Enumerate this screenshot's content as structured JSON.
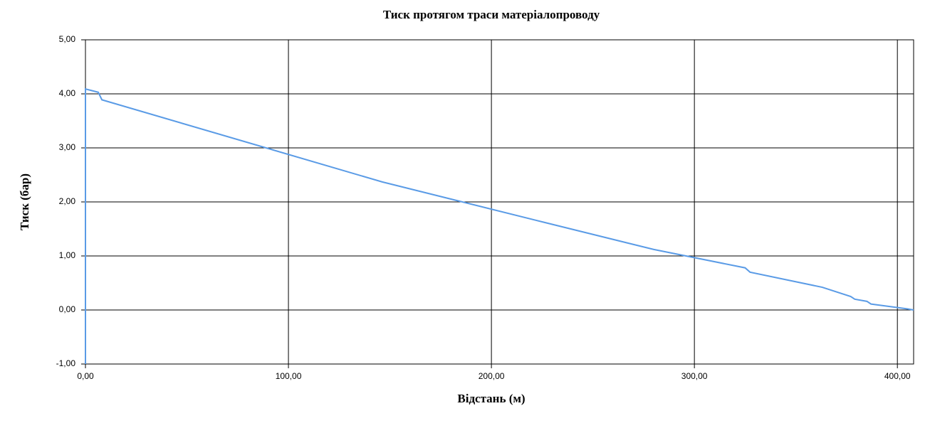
{
  "chart_data": {
    "type": "line",
    "title": "Тиск протягом траси матеріалопроводу",
    "x_label": "Відстань (м)",
    "y_label": "Тиск (бар)",
    "x": [
      0,
      0,
      6.3,
      8.1,
      146.2,
      221.9,
      280,
      325,
      327.4,
      363,
      377,
      379,
      385,
      387,
      405,
      408
    ],
    "series": [
      {
        "name": "Тиск",
        "color": "#5a9be6",
        "values": [
          -1,
          4.09,
          4.03,
          3.89,
          2.37,
          1.66,
          1.12,
          0.78,
          0.7,
          0.42,
          0.25,
          0.2,
          0.16,
          0.11,
          0.02,
          0
        ]
      }
    ],
    "xlim": [
      0,
      408
    ],
    "ylim": [
      -1,
      5
    ],
    "xticks": [
      {
        "value": 0,
        "label": "0,00"
      },
      {
        "value": 100,
        "label": "100,00"
      },
      {
        "value": 200,
        "label": "200,00"
      },
      {
        "value": 300,
        "label": "300,00"
      },
      {
        "value": 400,
        "label": "400,00"
      }
    ],
    "yticks": [
      {
        "value": -1,
        "label": "-1,00"
      },
      {
        "value": 0,
        "label": "0,00"
      },
      {
        "value": 1,
        "label": "1,00"
      },
      {
        "value": 2,
        "label": "2,00"
      },
      {
        "value": 3,
        "label": "3,00"
      },
      {
        "value": 4,
        "label": "4,00"
      },
      {
        "value": 5,
        "label": "5,00"
      }
    ],
    "grid": true
  }
}
